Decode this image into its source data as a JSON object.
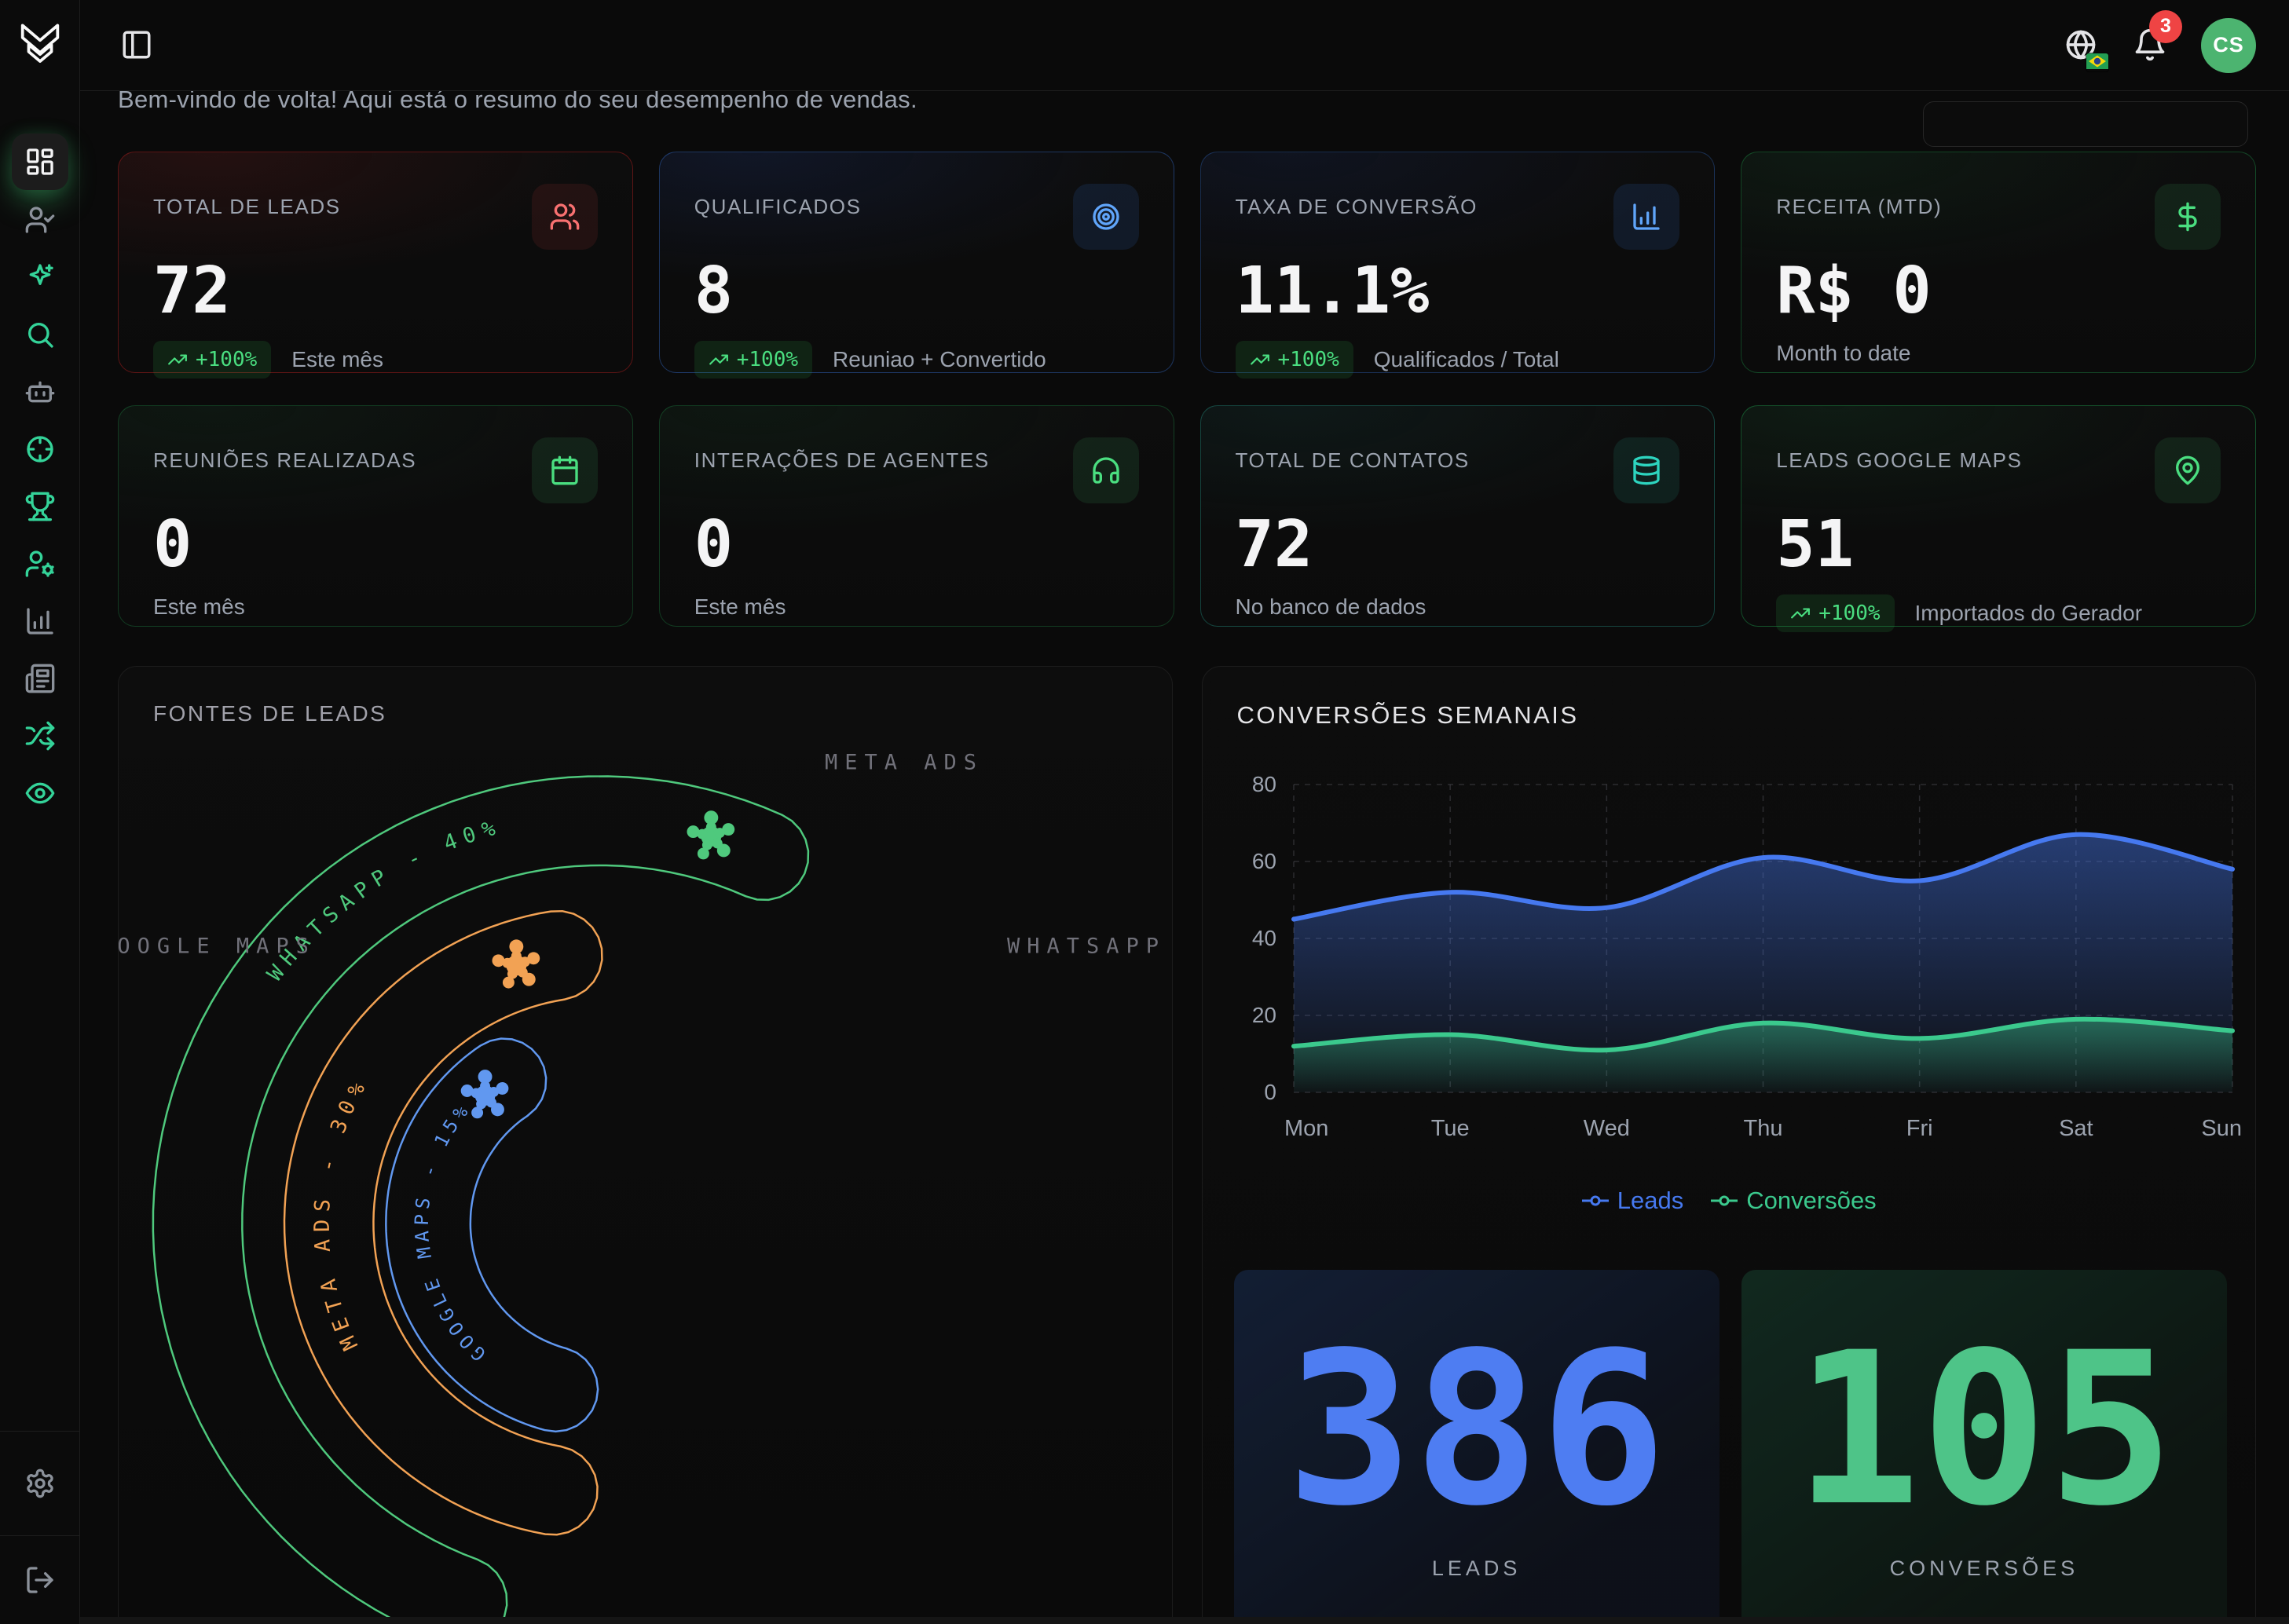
{
  "header": {
    "toggle_icon": "panel-left",
    "notification_count": "3",
    "avatar_initials": "CS",
    "locale_flag": "brazil-flag"
  },
  "greeting": "Bem-vindo de volta! Aqui está o resumo do seu desempenho de vendas.",
  "sidebar": {
    "items": [
      {
        "id": "dashboard",
        "icon": "layout-dashboard",
        "tone": "active"
      },
      {
        "id": "leads",
        "icon": "user-check",
        "tone": "muted"
      },
      {
        "id": "ai",
        "icon": "sparkles",
        "tone": "green"
      },
      {
        "id": "search",
        "icon": "search",
        "tone": "green"
      },
      {
        "id": "agents",
        "icon": "bot",
        "tone": "muted"
      },
      {
        "id": "targets",
        "icon": "crosshair",
        "tone": "green"
      },
      {
        "id": "wins",
        "icon": "trophy",
        "tone": "green"
      },
      {
        "id": "user-config",
        "icon": "user-cog",
        "tone": "green"
      },
      {
        "id": "analytics",
        "icon": "chart-column",
        "tone": "muted"
      },
      {
        "id": "reports",
        "icon": "newspaper",
        "tone": "muted"
      },
      {
        "id": "automation",
        "icon": "shuffle",
        "tone": "green"
      },
      {
        "id": "monitoring",
        "icon": "eye",
        "tone": "green"
      }
    ],
    "footer": [
      {
        "id": "settings",
        "icon": "settings",
        "tone": "muted"
      },
      {
        "id": "logout",
        "icon": "log-out",
        "tone": "muted"
      }
    ]
  },
  "stat_cards": [
    {
      "id": "total-de-leads",
      "title": "TOTAL DE LEADS",
      "value": "72",
      "badge": "+100%",
      "note": "Este mês",
      "icon": "users",
      "icon_color": "#f87171",
      "icon_bg": "rgba(239,68,68,0.10)",
      "border": "rgba(153,27,27,0.55)",
      "tint": "rgba(127,29,29,0.20)"
    },
    {
      "id": "qualificados",
      "title": "QUALIFICADOS",
      "value": "8",
      "badge": "+100%",
      "note": "Reuniao + Convertido",
      "icon": "target",
      "icon_color": "#60a5fa",
      "icon_bg": "rgba(59,130,246,0.12)",
      "border": "rgba(59,130,246,0.35)",
      "tint": "rgba(30,58,138,0.20)"
    },
    {
      "id": "taxa-de-conversao",
      "title": "TAXA DE CONVERSÃO",
      "value": "11.1%",
      "badge": "+100%",
      "note": "Qualificados / Total",
      "icon": "chart-column",
      "icon_color": "#60a5fa",
      "icon_bg": "rgba(59,130,246,0.12)",
      "border": "rgba(59,130,246,0.28)",
      "tint": "rgba(30,58,138,0.15)"
    },
    {
      "id": "receita-mtd",
      "title": "RECEITA (MTD)",
      "value": "R$ 0",
      "badge": null,
      "note": "Month to date",
      "icon": "dollar-sign",
      "icon_color": "#4ade80",
      "icon_bg": "rgba(74,222,128,0.10)",
      "border": "rgba(34,197,94,0.30)",
      "tint": "rgba(20,83,45,0.18)"
    },
    {
      "id": "reunioes-realizadas",
      "title": "REUNIÕES REALIZADAS",
      "value": "0",
      "badge": null,
      "note": "Este mês",
      "icon": "calendar",
      "icon_color": "#4ade80",
      "icon_bg": "rgba(74,222,128,0.10)",
      "border": "rgba(34,197,94,0.25)",
      "tint": "rgba(20,83,45,0.15)"
    },
    {
      "id": "interacoes-de-agentes",
      "title": "INTERAÇÕES DE AGENTES",
      "value": "0",
      "badge": null,
      "note": "Este mês",
      "icon": "headphones",
      "icon_color": "#4ade80",
      "icon_bg": "rgba(74,222,128,0.10)",
      "border": "rgba(34,197,94,0.25)",
      "tint": "rgba(20,83,45,0.15)"
    },
    {
      "id": "total-de-contatos",
      "title": "TOTAL DE CONTATOS",
      "value": "72",
      "badge": null,
      "note": "No banco de dados",
      "icon": "database",
      "icon_color": "#2dd4bf",
      "icon_bg": "rgba(45,212,191,0.10)",
      "border": "rgba(45,212,191,0.28)",
      "tint": "rgba(19,78,74,0.18)"
    },
    {
      "id": "leads-google-maps",
      "title": "LEADS GOOGLE MAPS",
      "value": "51",
      "badge": "+100%",
      "note": "Importados do Gerador",
      "icon": "map-pin",
      "icon_color": "#4ade80",
      "icon_bg": "rgba(74,222,128,0.10)",
      "border": "rgba(34,197,94,0.35)",
      "tint": "rgba(20,83,45,0.20)"
    }
  ],
  "chart_data": [
    {
      "type": "radialbar",
      "title": "FONTES DE LEADS",
      "series": [
        {
          "label": "WHATSAPP",
          "value": 40,
          "track_label": "WHATSAPP - 40%",
          "color": "#4fc97d"
        },
        {
          "label": "META ADS",
          "value": 30,
          "track_label": "META ADS - 30%",
          "color": "#f2a254"
        },
        {
          "label": "GOOGLE MAPS",
          "value": 15,
          "track_label": "GOOGLE MAPS - 15%",
          "color": "#6198f0"
        }
      ],
      "axis_labels": [
        {
          "text": "META ADS",
          "x": 1000,
          "y": 122
        },
        {
          "text": "GOOGLE MAPS",
          "x": 112,
          "y": 356
        },
        {
          "text": "WHATSAPP",
          "x": 1232,
          "y": 356
        }
      ],
      "layout": {
        "center": [
          616,
          710
        ],
        "rings": [
          {
            "R": 515,
            "hw": 57,
            "a1": 250,
            "a2": 66,
            "text_offset": "58%",
            "fs": 27,
            "ls": 9,
            "icon_a": 74
          },
          {
            "R": 347,
            "hw": 57,
            "a1": 260,
            "a2": 99,
            "text_offset": "33%",
            "fs": 27,
            "ls": 9,
            "icon_a": 108
          },
          {
            "R": 220,
            "hw": 54,
            "a1": 255,
            "a2": 124,
            "text_offset": "20%",
            "fs": 24,
            "ls": 6,
            "icon_a": 132
          }
        ]
      }
    },
    {
      "type": "area",
      "title": "CONVERSÕES SEMANAIS",
      "categories": [
        "Mon",
        "Tue",
        "Wed",
        "Thu",
        "Fri",
        "Sat",
        "Sun"
      ],
      "series": [
        {
          "name": "Leads",
          "color": "#4679f0",
          "values": [
            45,
            52,
            48,
            61,
            55,
            67,
            58
          ]
        },
        {
          "name": "Conversões",
          "color": "#3bc98d",
          "values": [
            12,
            15,
            11,
            18,
            14,
            19,
            16
          ]
        }
      ],
      "ylim": [
        0,
        80
      ],
      "yticks": [
        0,
        20,
        40,
        60,
        80
      ],
      "grid": "dashed",
      "legend_position": "bottom",
      "totals": [
        {
          "value": "386",
          "label": "LEADS",
          "color": "#4e7df2",
          "bg": "linear-gradient(145deg, rgba(59,130,246,0.14), rgba(59,130,246,0.02) 70%), #0c0e14"
        },
        {
          "value": "105",
          "label": "CONVERSÕES",
          "color": "#4ec488",
          "bg": "linear-gradient(145deg, rgba(52,211,153,0.12), rgba(52,211,153,0.02) 70%), #0c110e"
        }
      ]
    }
  ]
}
